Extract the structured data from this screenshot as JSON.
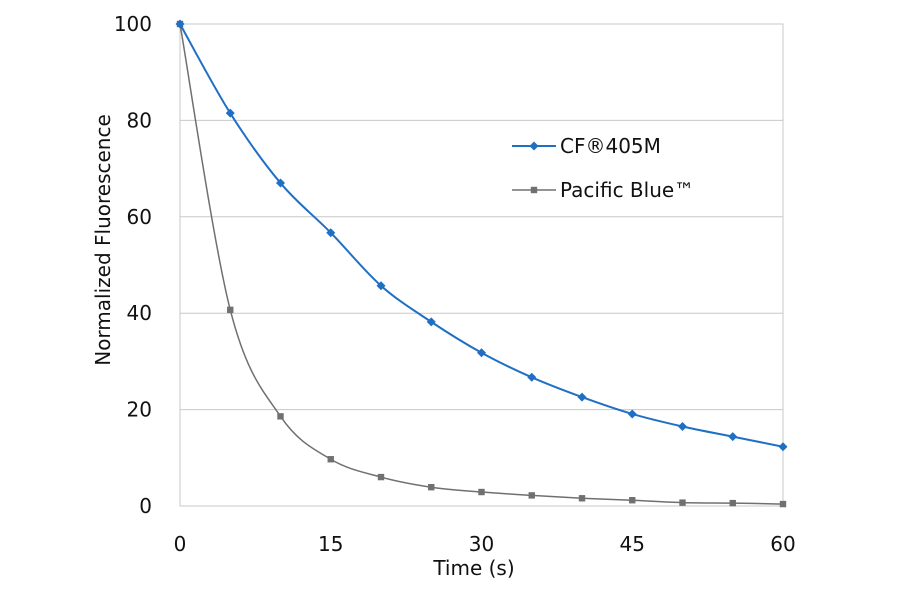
{
  "chart_data": {
    "type": "line",
    "title": "",
    "xlabel": "Time (s)",
    "ylabel": "Normalized Fluorescence",
    "xlim": [
      0,
      60
    ],
    "ylim": [
      0,
      100
    ],
    "xticks": [
      0,
      15,
      30,
      45,
      60
    ],
    "yticks": [
      0,
      20,
      40,
      60,
      80,
      100
    ],
    "x_tick_labels": [
      "0",
      "15",
      "30",
      "45",
      "60"
    ],
    "y_tick_labels": [
      "0",
      "20",
      "40",
      "60",
      "80",
      "100"
    ],
    "grid": "horizontal",
    "legend_position": "upper-right",
    "x": [
      0,
      5,
      10,
      15,
      20,
      25,
      30,
      35,
      40,
      45,
      50,
      55,
      60
    ],
    "series": [
      {
        "name": "CF®405M",
        "color": "#1f6fc5",
        "marker": "diamond",
        "values": [
          100,
          81.5,
          67,
          56.7,
          45.7,
          38.2,
          31.8,
          26.7,
          22.6,
          19.1,
          16.5,
          14.4,
          12.3
        ]
      },
      {
        "name": "Pacific Blue™",
        "color": "#707070",
        "marker": "square",
        "values": [
          100,
          40.7,
          18.6,
          9.7,
          6.0,
          3.9,
          2.9,
          2.2,
          1.6,
          1.2,
          0.7,
          0.6,
          0.4
        ]
      }
    ]
  }
}
